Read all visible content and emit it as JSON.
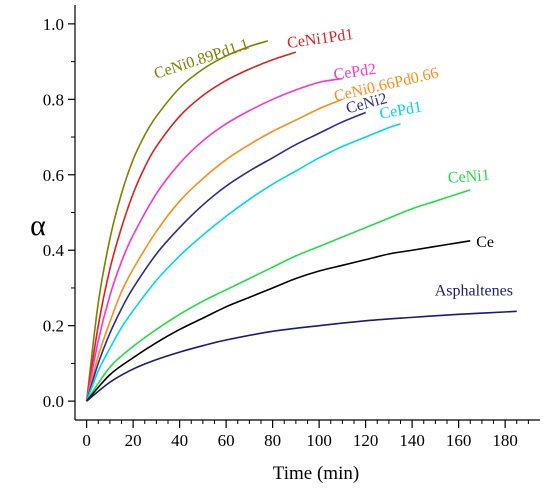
{
  "chart_data": {
    "type": "line",
    "xlabel": "Time (min)",
    "ylabel": "α",
    "xlim": [
      -5,
      195
    ],
    "ylim": [
      -0.05,
      1.05
    ],
    "xticks": [
      0,
      20,
      40,
      60,
      80,
      100,
      120,
      140,
      160,
      180
    ],
    "xtick_labels": [
      "0",
      "20",
      "40",
      "60",
      "80",
      "100",
      "120",
      "140",
      "160",
      "180"
    ],
    "yticks": [
      0.0,
      0.2,
      0.4,
      0.6,
      0.8,
      1.0
    ],
    "ytick_labels": [
      "0.0",
      "0.2",
      "0.4",
      "0.6",
      "0.8",
      "1.0"
    ],
    "grid": false,
    "series": [
      {
        "name": "CeNi0.89Pd1.1",
        "color": "#808000",
        "x": [
          0,
          5,
          10,
          15,
          20,
          25,
          30,
          40,
          50,
          60,
          70,
          78
        ],
        "y": [
          0,
          0.26,
          0.43,
          0.55,
          0.64,
          0.705,
          0.755,
          0.83,
          0.88,
          0.915,
          0.94,
          0.955
        ]
      },
      {
        "name": "CeNi1Pd1",
        "color": "#e02020",
        "x": [
          0,
          5,
          10,
          15,
          20,
          25,
          30,
          40,
          50,
          60,
          70,
          80,
          90
        ],
        "y": [
          0,
          0.2,
          0.35,
          0.46,
          0.55,
          0.62,
          0.675,
          0.755,
          0.81,
          0.85,
          0.88,
          0.905,
          0.925
        ]
      },
      {
        "name": "CePd2",
        "color": "#ff33cc",
        "x": [
          0,
          5,
          10,
          15,
          20,
          30,
          40,
          50,
          60,
          70,
          80,
          90,
          100,
          110
        ],
        "y": [
          0,
          0.16,
          0.28,
          0.37,
          0.44,
          0.55,
          0.63,
          0.69,
          0.735,
          0.77,
          0.8,
          0.825,
          0.845,
          0.855
        ]
      },
      {
        "name": "CeNi0.66Pd0.66",
        "color": "#ff8c1a",
        "x": [
          0,
          5,
          10,
          15,
          20,
          30,
          40,
          50,
          60,
          70,
          80,
          90,
          100,
          110
        ],
        "y": [
          0,
          0.12,
          0.21,
          0.29,
          0.35,
          0.45,
          0.53,
          0.59,
          0.64,
          0.68,
          0.715,
          0.745,
          0.775,
          0.8
        ]
      },
      {
        "name": "CeNi2",
        "color": "#2a2a9a",
        "x": [
          0,
          5,
          10,
          15,
          20,
          30,
          40,
          50,
          60,
          70,
          80,
          90,
          100,
          110,
          120
        ],
        "y": [
          0,
          0.1,
          0.18,
          0.245,
          0.3,
          0.39,
          0.46,
          0.52,
          0.57,
          0.61,
          0.645,
          0.68,
          0.71,
          0.74,
          0.765
        ]
      },
      {
        "name": "CePd1",
        "color": "#00d8e8",
        "x": [
          0,
          5,
          10,
          15,
          20,
          30,
          40,
          50,
          60,
          70,
          80,
          90,
          100,
          110,
          120,
          130,
          135
        ],
        "y": [
          0,
          0.08,
          0.14,
          0.195,
          0.24,
          0.32,
          0.385,
          0.44,
          0.49,
          0.535,
          0.575,
          0.61,
          0.645,
          0.675,
          0.7,
          0.725,
          0.735
        ]
      },
      {
        "name": "CeNi1",
        "color": "#22dd44",
        "x": [
          0,
          10,
          20,
          30,
          40,
          50,
          60,
          70,
          80,
          90,
          100,
          110,
          120,
          130,
          140,
          150,
          160,
          165
        ],
        "y": [
          0,
          0.09,
          0.145,
          0.19,
          0.23,
          0.265,
          0.295,
          0.325,
          0.355,
          0.385,
          0.41,
          0.435,
          0.46,
          0.485,
          0.51,
          0.53,
          0.55,
          0.56
        ]
      },
      {
        "name": "Ce",
        "color": "#000000",
        "x": [
          0,
          10,
          20,
          30,
          40,
          50,
          60,
          70,
          80,
          90,
          100,
          110,
          120,
          130,
          140,
          150,
          160,
          165
        ],
        "y": [
          0,
          0.07,
          0.115,
          0.155,
          0.19,
          0.22,
          0.25,
          0.275,
          0.3,
          0.325,
          0.345,
          0.36,
          0.375,
          0.39,
          0.4,
          0.41,
          0.42,
          0.425
        ]
      },
      {
        "name": "Asphaltenes",
        "color": "#1a1a7a",
        "x": [
          0,
          10,
          20,
          30,
          40,
          50,
          60,
          80,
          100,
          120,
          140,
          160,
          185
        ],
        "y": [
          0,
          0.05,
          0.085,
          0.11,
          0.13,
          0.147,
          0.162,
          0.185,
          0.2,
          0.213,
          0.222,
          0.23,
          0.238
        ]
      }
    ]
  }
}
